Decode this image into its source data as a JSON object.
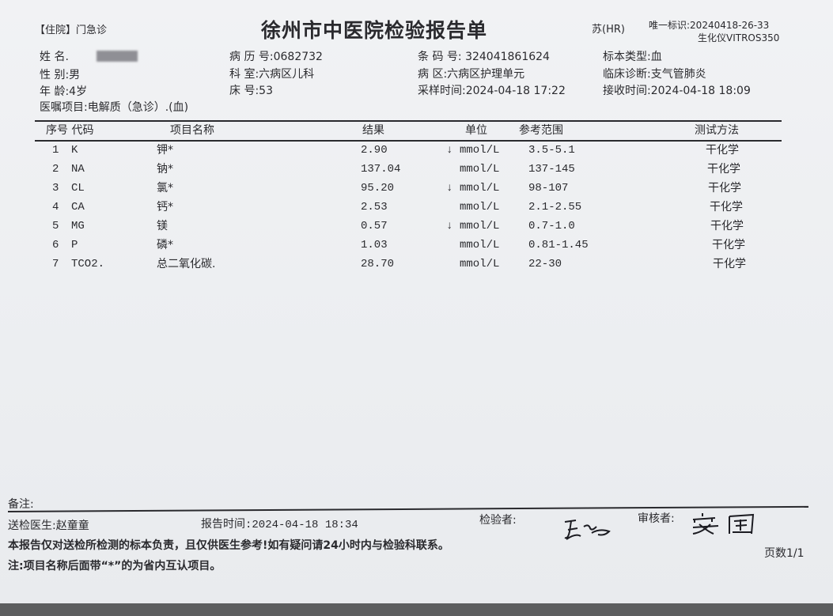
{
  "header": {
    "visit_type": "【住院】门急诊",
    "title": "徐州市中医院检验报告单",
    "region_code": "苏(HR)",
    "unique_id": "唯一标识:20240418-26-33",
    "instrument": "生化仪VITROS350"
  },
  "patient": {
    "name_label": "姓  名.",
    "gender": "性  别:男",
    "age": "年  龄:4岁",
    "record_no": "病 历 号:0682732",
    "department": "科    室:六病区儿科",
    "bed": "床    号:53",
    "barcode": "条 码 号: 324041861624",
    "ward": "病    区:六病区护理单元",
    "sample_time": "采样时间:2024-04-18 17:22",
    "specimen_type": "标本类型:血",
    "diagnosis": "临床诊断:支气管肺炎",
    "receive_time": "接收时间:2024-04-18 18:09",
    "order": "医嘱项目:电解质（急诊）.(血)"
  },
  "table": {
    "headers": {
      "seq_code": "序号 代码",
      "name": "项目名称",
      "result": "结果",
      "unit": "单位",
      "range": "参考范围",
      "method": "测试方法"
    },
    "rows": [
      {
        "seq": "1",
        "code": "K",
        "name": "钾*",
        "result": "2.90",
        "flag": "↓",
        "unit": "mmol/L",
        "range": "3.5-5.1",
        "method": "干化学"
      },
      {
        "seq": "2",
        "code": "NA",
        "name": "钠*",
        "result": "137.04",
        "flag": "",
        "unit": "mmol/L",
        "range": "137-145",
        "method": "干化学"
      },
      {
        "seq": "3",
        "code": "CL",
        "name": "氯*",
        "result": "95.20",
        "flag": "↓",
        "unit": "mmol/L",
        "range": "98-107",
        "method": "干化学"
      },
      {
        "seq": "4",
        "code": "CA",
        "name": "钙*",
        "result": "2.53",
        "flag": "",
        "unit": "mmol/L",
        "range": "2.1-2.55",
        "method": "干化学"
      },
      {
        "seq": "5",
        "code": "MG",
        "name": "镁",
        "result": "0.57",
        "flag": "↓",
        "unit": "mmol/L",
        "range": "0.7-1.0",
        "method": "干化学"
      },
      {
        "seq": "6",
        "code": "P",
        "name": "磷*",
        "result": "1.03",
        "flag": "",
        "unit": "mmol/L",
        "range": "0.81-1.45",
        "method": "干化学"
      },
      {
        "seq": "7",
        "code": "TCO2.",
        "name": "总二氧化碳.",
        "result": "28.70",
        "flag": "",
        "unit": "mmol/L",
        "range": "22-30",
        "method": "干化学"
      }
    ]
  },
  "footer": {
    "remarks": "备注:",
    "doctor": "送检医生:赵童童",
    "report_time": "报告时间:2024-04-18 18:34",
    "tester_label": "检验者:",
    "reviewer_label": "审核者:",
    "disclaimer": "本报告仅对送检所检测的标本负责，且仅供医生参考!如有疑问请24小时内与检验科联系。",
    "note": "注:项目名称后面带“*”的为省内互认项目。",
    "page": "页数1/1"
  }
}
